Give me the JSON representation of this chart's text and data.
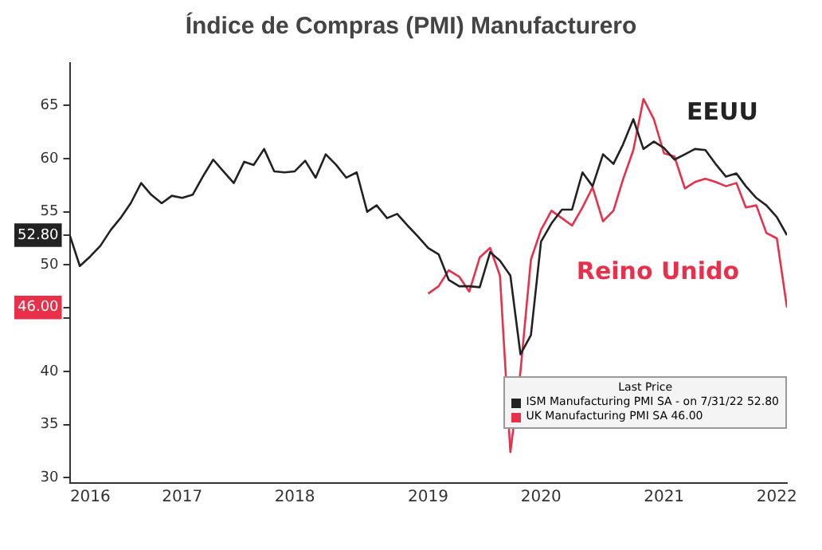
{
  "chart_data": {
    "type": "line",
    "title": "Índice de Compras (PMI) Manufacturero",
    "legend_title": "Last Price",
    "legend": "bottom right",
    "grid": false,
    "marker": "none",
    "line_style": "solid",
    "x": [
      "2016-09",
      "2016-10",
      "2016-11",
      "2016-12",
      "2017-01",
      "2017-02",
      "2017-03",
      "2017-04",
      "2017-05",
      "2017-06",
      "2017-07",
      "2017-08",
      "2017-09",
      "2017-10",
      "2017-11",
      "2017-12",
      "2018-01",
      "2018-02",
      "2018-03",
      "2018-04",
      "2018-05",
      "2018-06",
      "2018-07",
      "2018-08",
      "2018-09",
      "2018-10",
      "2018-11",
      "2018-12",
      "2019-01",
      "2019-02",
      "2019-03",
      "2019-04",
      "2019-05",
      "2019-06",
      "2019-07",
      "2019-08",
      "2019-09",
      "2019-10",
      "2019-11",
      "2019-12",
      "2020-01",
      "2020-02",
      "2020-03",
      "2020-04",
      "2020-05",
      "2020-06",
      "2020-07",
      "2020-08",
      "2020-09",
      "2020-10",
      "2020-11",
      "2020-12",
      "2021-01",
      "2021-02",
      "2021-03",
      "2021-04",
      "2021-05",
      "2021-06",
      "2021-07",
      "2021-08",
      "2021-09",
      "2021-10",
      "2021-11",
      "2021-12",
      "2022-01",
      "2022-02",
      "2022-03",
      "2022-04",
      "2022-05",
      "2022-06",
      "2022-07"
    ],
    "series": [
      {
        "name": "ISM Manufacturing PMI SA - on 7/31/22 52.80",
        "color": "#222222",
        "values": [
          52.8,
          49.9,
          50.8,
          51.8,
          53.3,
          54.5,
          55.8,
          57.7,
          56.6,
          55.8,
          56.5,
          56.3,
          56.6,
          58.3,
          59.9,
          58.8,
          57.7,
          59.7,
          59.4,
          60.9,
          58.8,
          58.7,
          58.8,
          59.8,
          58.2,
          60.4,
          59.4,
          58.2,
          58.7,
          55.0,
          55.6,
          54.4,
          54.8,
          53.7,
          52.7,
          51.6,
          51.0,
          48.6,
          48.0,
          48.0,
          47.9,
          51.2,
          50.4,
          49.0,
          41.6,
          43.4,
          52.2,
          53.9,
          55.2,
          55.2,
          58.7,
          57.4,
          60.4,
          59.5,
          61.3,
          63.7,
          60.9,
          61.6,
          61.0,
          59.9,
          60.4,
          60.9,
          60.8,
          59.5,
          58.3,
          58.6,
          57.4,
          56.3,
          55.6,
          54.5,
          52.8
        ]
      },
      {
        "name": "UK Manufacturing PMI SA 46.00",
        "color": "#e8304a",
        "values": [
          null,
          null,
          null,
          null,
          null,
          null,
          null,
          null,
          null,
          null,
          null,
          null,
          null,
          null,
          null,
          null,
          null,
          null,
          null,
          null,
          null,
          null,
          null,
          null,
          null,
          null,
          null,
          null,
          null,
          null,
          null,
          null,
          null,
          null,
          null,
          47.3,
          48.0,
          49.5,
          48.9,
          47.5,
          50.7,
          51.6,
          49.0,
          32.4,
          40.0,
          50.5,
          53.3,
          55.1,
          54.4,
          53.7,
          55.4,
          57.3,
          54.1,
          55.1,
          58.0,
          60.8,
          65.6,
          63.7,
          60.5,
          60.2,
          57.2,
          57.8,
          58.1,
          57.8,
          57.4,
          57.7,
          55.4,
          55.6,
          53.0,
          52.5,
          46.0
        ]
      }
    ],
    "ylim": [
      29.5,
      69
    ],
    "yticks": [
      30,
      35,
      40,
      {
        "value": 45,
        "label": null
      },
      50,
      55,
      60,
      65,
      {
        "value": 52.8,
        "label": "52.80"
      },
      {
        "value": 46,
        "label": "46.00"
      }
    ],
    "xlim": [
      "2016-09",
      "2022-07"
    ],
    "xticks": [
      {
        "value": "2016-11",
        "label": "2016"
      },
      {
        "value": "2017-08",
        "label": "2017"
      },
      {
        "value": "2018-07",
        "label": "2018"
      },
      {
        "value": "2019-08",
        "label": "2019"
      },
      {
        "value": "2020-07",
        "label": "2020"
      },
      {
        "value": "2021-07",
        "label": "2021"
      },
      {
        "value": "2022-06",
        "label": "2022"
      }
    ],
    "annotations": [
      "EEUU",
      "Reino Unido"
    ]
  }
}
